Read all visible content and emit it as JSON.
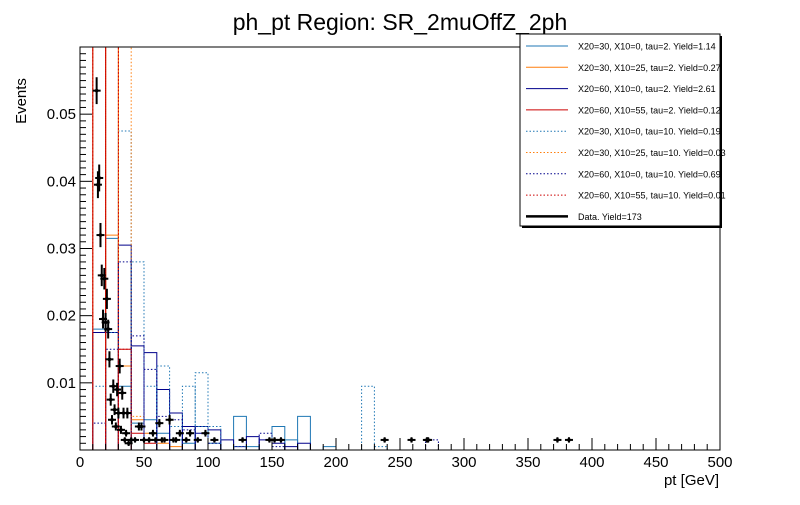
{
  "chart_data": {
    "type": "histogram",
    "title": "ph_pt Region: SR_2muOffZ_2ph",
    "xlabel": "pt [GeV]",
    "ylabel": "Events",
    "xlim": [
      0,
      500
    ],
    "ylim": [
      0,
      0.06
    ],
    "x_ticks": [
      0,
      50,
      100,
      150,
      200,
      250,
      300,
      350,
      400,
      450,
      500
    ],
    "x_tick_labels": [
      "0",
      "50",
      "100",
      "150",
      "200",
      "250",
      "300",
      "350",
      "400",
      "450",
      "500"
    ],
    "y_ticks": [
      0.01,
      0.02,
      0.03,
      0.04,
      0.05
    ],
    "y_tick_labels": [
      "0.01",
      "0.02",
      "0.03",
      "0.04",
      "0.05"
    ],
    "grid": false,
    "legend_position": "top-right",
    "series": [
      {
        "name": "X20=30, X10=0, tau=2. Yield=1.14",
        "color": "#1f77b4",
        "style": "solid",
        "bins": [
          [
            10,
            20,
            0.018
          ],
          [
            20,
            30,
            0.0315
          ],
          [
            30,
            40,
            0.0095
          ],
          [
            40,
            50,
            0.004
          ],
          [
            50,
            60,
            0.0045
          ],
          [
            60,
            70,
            0.0025
          ],
          [
            70,
            80,
            0.0015
          ],
          [
            80,
            90,
            0.001
          ],
          [
            90,
            100,
            0.0035
          ],
          [
            100,
            110,
            0.001
          ],
          [
            120,
            130,
            0.005
          ],
          [
            130,
            140,
            0.0005
          ],
          [
            150,
            160,
            0.0035
          ],
          [
            160,
            170,
            0.0015
          ],
          [
            170,
            180,
            0.005
          ],
          [
            190,
            200,
            0.0005
          ]
        ]
      },
      {
        "name": "X20=30, X10=25, tau=2. Yield=0.27",
        "color": "#ff7f0e",
        "style": "solid",
        "bins": [
          [
            10,
            20,
            0.06
          ],
          [
            20,
            30,
            0.032
          ],
          [
            30,
            40,
            0.0125
          ],
          [
            40,
            50,
            0.0045
          ],
          [
            50,
            60,
            0.0025
          ],
          [
            60,
            70,
            0.001
          ],
          [
            70,
            80,
            0.0005
          ]
        ]
      },
      {
        "name": "X20=60, X10=0, tau=2. Yield=2.61",
        "color": "#00008b",
        "style": "solid",
        "bins": [
          [
            10,
            20,
            0.0175
          ],
          [
            20,
            30,
            0.0175
          ],
          [
            30,
            40,
            0.0305
          ],
          [
            40,
            50,
            0.0155
          ],
          [
            50,
            60,
            0.0145
          ],
          [
            60,
            70,
            0.009
          ],
          [
            70,
            80,
            0.0055
          ],
          [
            80,
            90,
            0.0035
          ],
          [
            90,
            100,
            0.0025
          ],
          [
            100,
            110,
            0.003
          ],
          [
            110,
            120,
            0.0015
          ],
          [
            120,
            130,
            0.0005
          ],
          [
            130,
            140,
            0.002
          ],
          [
            140,
            150,
            0.0015
          ],
          [
            150,
            160,
            0.001
          ],
          [
            160,
            170,
            0.0005
          ],
          [
            170,
            180,
            0.001
          ]
        ]
      },
      {
        "name": "X20=60, X10=55, tau=2. Yield=0.12",
        "color": "#cc0000",
        "style": "solid",
        "bins": [
          [
            10,
            20,
            0.06
          ],
          [
            20,
            30,
            0.06
          ],
          [
            30,
            40,
            0.015
          ],
          [
            40,
            50,
            0.0025
          ],
          [
            50,
            60,
            0.001
          ]
        ]
      },
      {
        "name": "X20=30, X10=0, tau=10. Yield=0.19",
        "color": "#1f77b4",
        "style": "dotted",
        "bins": [
          [
            10,
            20,
            0.0095
          ],
          [
            20,
            30,
            0.0175
          ],
          [
            30,
            40,
            0.0475
          ],
          [
            40,
            50,
            0.028
          ],
          [
            50,
            60,
            0.0095
          ],
          [
            60,
            70,
            0.0125
          ],
          [
            70,
            80,
            0.0035
          ],
          [
            80,
            90,
            0.0095
          ],
          [
            90,
            100,
            0.0115
          ],
          [
            100,
            110,
            0.0035
          ],
          [
            120,
            130,
            0.0005
          ],
          [
            220,
            230,
            0.0095
          ],
          [
            230,
            240,
            0.0005
          ]
        ]
      },
      {
        "name": "X20=30, X10=25, tau=10. Yield=0.03",
        "color": "#ff7f0e",
        "style": "dotted",
        "bins": [
          [
            10,
            20,
            0.06
          ],
          [
            20,
            30,
            0.06
          ],
          [
            30,
            40,
            0.06
          ],
          [
            40,
            50,
            0.005
          ]
        ]
      },
      {
        "name": "X20=60, X10=0, tau=10. Yield=0.69",
        "color": "#00008b",
        "style": "dotted",
        "bins": [
          [
            10,
            20,
            0.004
          ],
          [
            20,
            30,
            0.015
          ],
          [
            30,
            40,
            0.028
          ],
          [
            40,
            50,
            0.017
          ],
          [
            50,
            60,
            0.012
          ],
          [
            60,
            70,
            0.005
          ],
          [
            70,
            80,
            0.0045
          ],
          [
            80,
            90,
            0.003
          ],
          [
            90,
            100,
            0.0035
          ],
          [
            100,
            110,
            0.001
          ],
          [
            140,
            150,
            0.0025
          ],
          [
            150,
            160,
            0.0005
          ],
          [
            270,
            280,
            0.0015
          ]
        ]
      },
      {
        "name": "X20=60, X10=55, tau=10. Yield=0.01",
        "color": "#cc0000",
        "style": "dotted",
        "bins": [
          [
            10,
            20,
            0.06
          ],
          [
            20,
            30,
            0.06
          ],
          [
            30,
            40,
            0.015
          ]
        ]
      },
      {
        "name": "Data. Yield=173",
        "color": "#000000",
        "style": "points",
        "points": [
          [
            13,
            0.0535,
            0.002
          ],
          [
            14,
            0.0395,
            0.002
          ],
          [
            15,
            0.0405,
            0.002
          ],
          [
            16,
            0.032,
            0.0018
          ],
          [
            17,
            0.026,
            0.0016
          ],
          [
            18,
            0.0195,
            0.0014
          ],
          [
            19,
            0.0255,
            0.0016
          ],
          [
            20,
            0.019,
            0.0014
          ],
          [
            21,
            0.0225,
            0.0015
          ],
          [
            22,
            0.018,
            0.0014
          ],
          [
            23,
            0.0135,
            0.0012
          ],
          [
            24,
            0.0075,
            0.0009
          ],
          [
            25,
            0.0045,
            0.0007
          ],
          [
            26,
            0.0095,
            0.001
          ],
          [
            27,
            0.006,
            0.0008
          ],
          [
            28,
            0.0035,
            0.0006
          ],
          [
            29,
            0.009,
            0.001
          ],
          [
            30,
            0.0055,
            0.0008
          ],
          [
            31,
            0.0125,
            0.0011
          ],
          [
            32,
            0.003,
            0.0006
          ],
          [
            33,
            0.0085,
            0.001
          ],
          [
            34,
            0.0055,
            0.0008
          ],
          [
            35,
            0.0015,
            0.0004
          ],
          [
            36,
            0.0025,
            0.0005
          ],
          [
            37,
            0.0055,
            0.0008
          ],
          [
            38,
            0.001,
            0.0004
          ],
          [
            40,
            0.0015,
            0.0004
          ],
          [
            43,
            0.0015,
            0.0004
          ],
          [
            46,
            0.0035,
            0.0006
          ],
          [
            48,
            0.0035,
            0.0006
          ],
          [
            50,
            0.0015,
            0.0004
          ],
          [
            54,
            0.0015,
            0.0004
          ],
          [
            57,
            0.0025,
            0.0005
          ],
          [
            59,
            0.0015,
            0.0004
          ],
          [
            62,
            0.004,
            0.0006
          ],
          [
            64,
            0.0015,
            0.0004
          ],
          [
            66,
            0.0015,
            0.0004
          ],
          [
            70,
            0.0045,
            0.0007
          ],
          [
            73,
            0.0015,
            0.0004
          ],
          [
            75,
            0.0015,
            0.0004
          ],
          [
            78,
            0.0025,
            0.0005
          ],
          [
            83,
            0.0015,
            0.0004
          ],
          [
            86,
            0.0025,
            0.0005
          ],
          [
            92,
            0.0015,
            0.0004
          ],
          [
            98,
            0.0025,
            0.0005
          ],
          [
            105,
            0.0015,
            0.0004
          ],
          [
            127,
            0.0015,
            0.0004
          ],
          [
            148,
            0.0015,
            0.0004
          ],
          [
            152,
            0.0015,
            0.0004
          ],
          [
            157,
            0.0015,
            0.0004
          ],
          [
            238,
            0.0015,
            0.0004
          ],
          [
            259,
            0.0015,
            0.0004
          ],
          [
            271,
            0.0015,
            0.0004
          ],
          [
            272,
            0.0015,
            0.0004
          ],
          [
            373,
            0.0015,
            0.0004
          ],
          [
            382,
            0.0015,
            0.0004
          ]
        ]
      }
    ]
  }
}
